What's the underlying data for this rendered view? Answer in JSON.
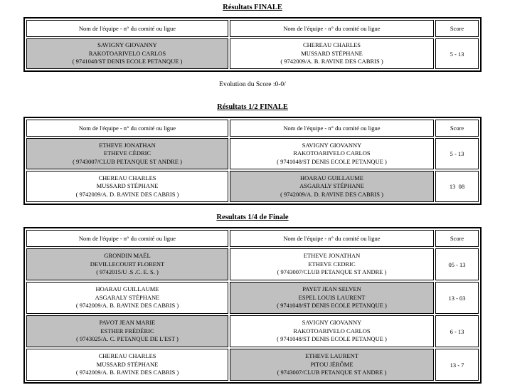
{
  "colors": {
    "highlight_cell": "#c0c0c0",
    "border": "#000000",
    "background": "#ffffff"
  },
  "sections": [
    {
      "id": "finale",
      "title": "Résultats FINALE",
      "headers": {
        "team1": "Nom de l'équipe - n° du comité ou ligue",
        "team2": "Nom de l'équipe - n° du comité ou ligue",
        "score": "Score"
      },
      "rows": [
        {
          "left": {
            "lines": [
              "SAVIGNY GIOVANNY",
              "RAKOTOARIVELO CARLOS",
              "( 9741048/ST DENIS ECOLE PETANQUE )"
            ],
            "highlight": true
          },
          "right": {
            "lines": [
              "CHEREAU CHARLES",
              "MUSSARD STÉPHANE",
              "( 9742009/A. B. RAVINE DES CABRIS )"
            ],
            "highlight": false
          },
          "score": "5 - 13"
        }
      ],
      "footer_note": "Evolution du Score :0-0/"
    },
    {
      "id": "demi-finale",
      "title": "Résultats 1/2 FINALE",
      "headers": {
        "team1": "Nom de l'équipe - n° du comité ou ligue",
        "team2": "Nom de l'équipe - n° du comité ou ligue",
        "score": "Score"
      },
      "rows": [
        {
          "left": {
            "lines": [
              "ETHEVE JONATHAN",
              "ETHEVE CÉDRIC",
              "( 9743007/CLUB PETANQUE ST ANDRE )"
            ],
            "highlight": true
          },
          "right": {
            "lines": [
              "SAVIGNY GIOVANNY",
              "RAKOTOARIVELO CARLOS",
              "( 9741048/ST DENIS ECOLE PETANQUE )"
            ],
            "highlight": false
          },
          "score": "5 - 13"
        },
        {
          "left": {
            "lines": [
              "CHEREAU CHARLES",
              "MUSSARD STÉPHANE",
              "( 9742009/A. D. RAVINE DES CABRIS )"
            ],
            "highlight": false
          },
          "right": {
            "lines": [
              "HOARAU GUILLAUME",
              "ASGARALY STÉPHANE",
              "( 9742009/A. D. RAVINE DES CABRIS )"
            ],
            "highlight": true
          },
          "score": "13  08"
        }
      ],
      "footer_note": null
    },
    {
      "id": "quart-de-finale",
      "title": "Resultats 1/4 de Finale",
      "headers": {
        "team1": "Nom de l'équipe - n° du comité ou ligue",
        "team2": "Nom de l'équipe - n° du comité ou ligue",
        "score": "Score"
      },
      "rows": [
        {
          "left": {
            "lines": [
              "GRONDIN MAËL",
              "DEVILLECOURT FLORENT",
              "( 9742015/U .S .C. E. S. )"
            ],
            "highlight": true
          },
          "right": {
            "lines": [
              "ETHEVE JONATHAN",
              "ETHEVE CEDRIC",
              "( 9743007/CLUB PETANQUE ST ANDRE )"
            ],
            "highlight": false
          },
          "score": "05 - 13"
        },
        {
          "left": {
            "lines": [
              "HOARAU GUILLAUME",
              "ASGARALY STÉPHANE",
              "( 9742009/A. B. RAVINE DES CABRIS )"
            ],
            "highlight": false
          },
          "right": {
            "lines": [
              "PAYET JEAN SELVEN",
              "ESPEL LOUIS LAURENT",
              "( 9741048/ST DENIS ECOLE PETANQUE )"
            ],
            "highlight": true
          },
          "score": "13 - 03"
        },
        {
          "left": {
            "lines": [
              "PAVOT JEAN MARIE",
              "ESTHER FRÉDÉRIC",
              "( 9743025/A. C. PETANQUE DE L'EST )"
            ],
            "highlight": true
          },
          "right": {
            "lines": [
              "SAVIGNY GIOVANNY",
              "RAKOTOARIVELO CARLOS",
              "( 9741048/ST DENIS ECOLE PETANQUE )"
            ],
            "highlight": false
          },
          "score": "6 - 13"
        },
        {
          "left": {
            "lines": [
              "CHEREAU CHARLES",
              "MUSSARD STÉPHANE",
              "( 9742009/A. B. RAVINE DES CABRIS )"
            ],
            "highlight": false
          },
          "right": {
            "lines": [
              "ETHEVE LAURENT",
              "PITOU JÉRÔME",
              "( 9743007/CLUB PETANQUE ST ANDRE )"
            ],
            "highlight": true
          },
          "score": "13 - 7"
        }
      ],
      "footer_note": null
    }
  ]
}
